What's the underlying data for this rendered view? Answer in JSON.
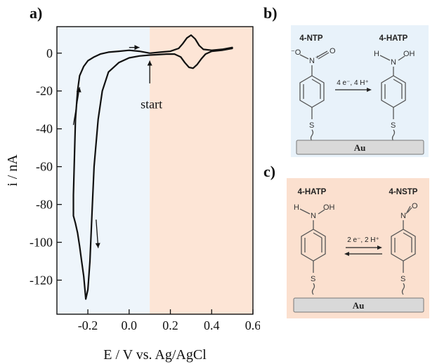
{
  "panels": {
    "a": "a)",
    "b": "b)",
    "c": "c)"
  },
  "colors": {
    "region_left": "#eef5fb",
    "region_right": "#fde5d6",
    "scheme_b_bg": "#e8f2fa",
    "scheme_c_bg": "#fbe0cf",
    "line": "#111111",
    "electrode": "#d9d9d9"
  },
  "chart_data": {
    "type": "line",
    "title": "",
    "xlabel": "E / V vs. Ag/AgCl",
    "ylabel": "i / nA",
    "xlim": [
      -0.35,
      0.6
    ],
    "ylim": [
      -138,
      14
    ],
    "xticks": [
      -0.2,
      0.0,
      0.2,
      0.4,
      0.6
    ],
    "xtick_labels": [
      "-0.2",
      "0.0",
      "0.2",
      "0.4",
      "0.6"
    ],
    "yticks": [
      0,
      -20,
      -40,
      -60,
      -80,
      -100,
      -120
    ],
    "ytick_labels": [
      "0",
      "-20",
      "-40",
      "-60",
      "-80",
      "-100",
      "-120"
    ],
    "shaded_regions": [
      {
        "from": -0.35,
        "to": 0.1,
        "color": "#eef5fb"
      },
      {
        "from": 0.1,
        "to": 0.6,
        "color": "#fde5d6"
      }
    ],
    "annotations": [
      {
        "text": "start",
        "x": 0.1,
        "y": -27
      }
    ],
    "arrows": [
      {
        "from": [
          0.0,
          3
        ],
        "to": [
          0.05,
          3
        ]
      },
      {
        "from": [
          0.1,
          -16
        ],
        "to": [
          0.1,
          -4
        ]
      },
      {
        "from": [
          -0.27,
          -38
        ],
        "to": [
          -0.24,
          -18
        ]
      },
      {
        "from": [
          -0.16,
          -88
        ],
        "to": [
          -0.15,
          -103
        ]
      }
    ],
    "series": [
      {
        "x": [
          0.1,
          0.15,
          0.2,
          0.24,
          0.26,
          0.28,
          0.3,
          0.32,
          0.34,
          0.36,
          0.4,
          0.45,
          0.5,
          0.5,
          0.45,
          0.4,
          0.37,
          0.35,
          0.33,
          0.31,
          0.29,
          0.27,
          0.25,
          0.22,
          0.18,
          0.14,
          0.1,
          0.05,
          0.0,
          -0.05,
          -0.1,
          -0.13,
          -0.15,
          -0.17,
          -0.18,
          -0.19,
          -0.2,
          -0.21,
          -0.22,
          -0.23,
          -0.24,
          -0.25,
          -0.26,
          -0.27,
          -0.27,
          -0.26,
          -0.25,
          -0.24,
          -0.22,
          -0.2,
          -0.17,
          -0.14,
          -0.1,
          -0.05,
          0.0,
          0.05,
          0.1
        ],
        "y": [
          0,
          0.5,
          1,
          2.5,
          5,
          8,
          9.5,
          7.5,
          4,
          2,
          1.5,
          2,
          3,
          2.5,
          1.5,
          1,
          -0.5,
          -3,
          -6,
          -8,
          -7.5,
          -5,
          -2,
          -0.5,
          -0.5,
          -0.8,
          -1,
          -1.5,
          -2.5,
          -5,
          -10,
          -20,
          -35,
          -60,
          -85,
          -110,
          -125,
          -130,
          -118,
          -110,
          -102,
          -95,
          -90,
          -86,
          -75,
          -35,
          -20,
          -12,
          -7,
          -4,
          -2,
          -0.5,
          0.5,
          1,
          1.5,
          1,
          0
        ]
      }
    ]
  },
  "scheme_b": {
    "left_label": "4-NTP",
    "right_label": "4-HATP",
    "reaction": "4 e⁻, 4 H⁺",
    "electrode": "Au",
    "left_top_n": "N",
    "left_o1": "⁻O",
    "left_plus": "+",
    "left_o2": "O",
    "right_h": "H",
    "right_n": "N",
    "right_oh": "OH",
    "s1": "S",
    "s2": "S"
  },
  "scheme_c": {
    "left_label": "4-HATP",
    "right_label": "4-NSTP",
    "reaction": "2 e⁻, 2 H⁺",
    "electrode": "Au",
    "left_h": "H",
    "left_n": "N",
    "left_oh": "OH",
    "right_n": "N",
    "right_o": "O",
    "s1": "S",
    "s2": "S"
  }
}
